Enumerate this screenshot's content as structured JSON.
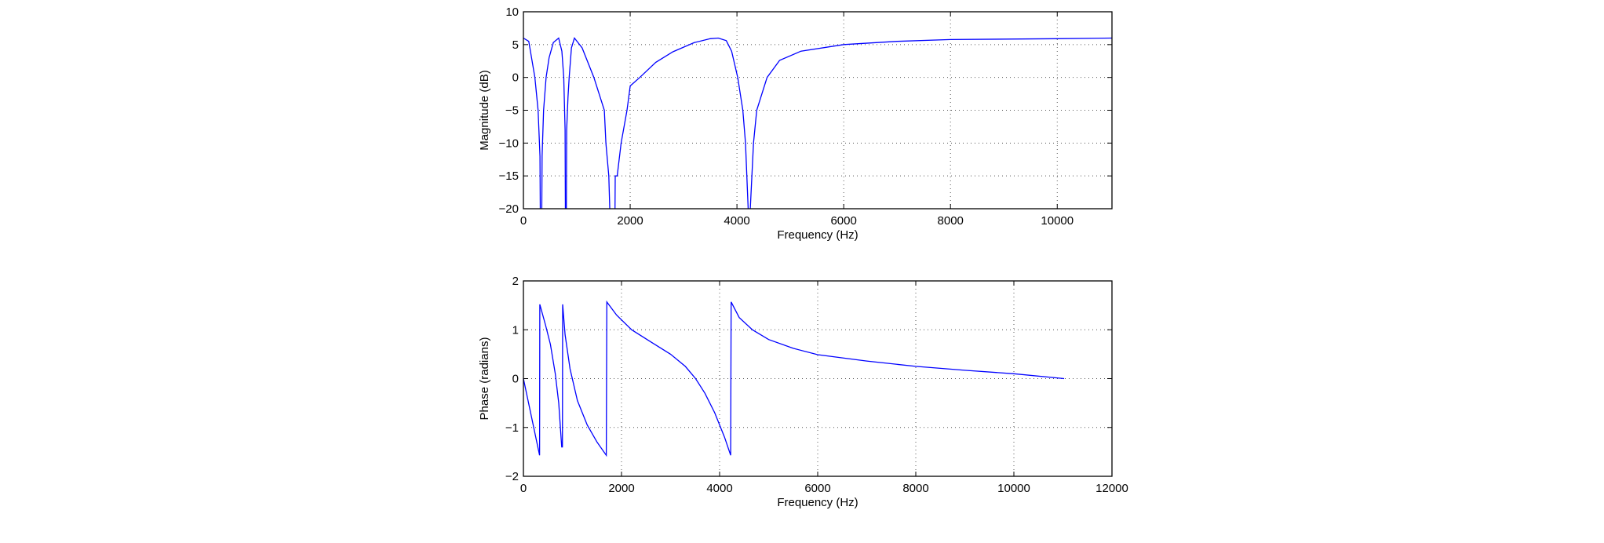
{
  "chart_data": [
    {
      "type": "line",
      "title": "",
      "xlabel": "Frequency (Hz)",
      "ylabel": "Magnitude (dB)",
      "xlim": [
        0,
        11025
      ],
      "ylim": [
        -20,
        10
      ],
      "xticks": [
        0,
        2000,
        4000,
        6000,
        8000,
        10000
      ],
      "yticks": [
        -20,
        -15,
        -10,
        -5,
        0,
        5,
        10
      ],
      "grid": true,
      "line_color": "#0000ff",
      "series": [
        {
          "name": "magnitude",
          "x": [
            0,
            100,
            215,
            275,
            310,
            330,
            350,
            378,
            425,
            480,
            560,
            660,
            720,
            756,
            780,
            795,
            810,
            835,
            857,
            900,
            955,
            1100,
            1320,
            1515,
            1545,
            1600,
            1690,
            1700,
            1720,
            1757,
            1830,
            1940,
            2000,
            2180,
            2480,
            2800,
            3200,
            3500,
            3650,
            3800,
            3900,
            4015,
            4110,
            4160,
            4210,
            4230,
            4250,
            4310,
            4370,
            4565,
            4800,
            5200,
            6000,
            7000,
            8000,
            10000,
            11025
          ],
          "y": [
            6,
            5.5,
            0,
            -5,
            -12,
            -40,
            -12,
            -5,
            0,
            3,
            5.3,
            6,
            4,
            0,
            -8,
            -40,
            -8,
            -3,
            0,
            4.5,
            6,
            4.5,
            0,
            -5,
            -10,
            -15,
            -40,
            -40,
            -15,
            -15,
            -10,
            -5,
            -1.3,
            0,
            2.3,
            3.9,
            5.3,
            5.9,
            6,
            5.6,
            4,
            0,
            -5,
            -10,
            -20,
            -40,
            -20,
            -10,
            -5,
            0,
            2.6,
            4,
            5,
            5.5,
            5.77,
            5.9,
            6
          ]
        }
      ]
    },
    {
      "type": "line",
      "title": "",
      "xlabel": "Frequency (Hz)",
      "ylabel": "Phase (radians)",
      "xlim": [
        0,
        12000
      ],
      "ylim": [
        -2,
        2
      ],
      "xticks": [
        0,
        2000,
        4000,
        6000,
        8000,
        10000,
        12000
      ],
      "yticks": [
        -2,
        -1,
        0,
        1,
        2
      ],
      "grid": true,
      "line_color": "#0000ff",
      "series": [
        {
          "name": "phase",
          "x": [
            0,
            330,
            335,
            450,
            550,
            650,
            720,
            780,
            795,
            800,
            850,
            950,
            1100,
            1300,
            1500,
            1690,
            1700,
            1900,
            2208,
            2600,
            3000,
            3300,
            3510,
            3700,
            3900,
            4100,
            4225,
            4235,
            4400,
            4670,
            5000,
            5500,
            6000,
            7000,
            8000,
            9000,
            10000,
            11025
          ],
          "y": [
            0,
            -1.57,
            1.52,
            1.1,
            0.7,
            0.1,
            -0.5,
            -1.4,
            -1.4,
            1.52,
            0.9,
            0.2,
            -0.45,
            -0.95,
            -1.3,
            -1.57,
            1.57,
            1.3,
            1.0,
            0.75,
            0.5,
            0.25,
            0,
            -0.3,
            -0.7,
            -1.2,
            -1.57,
            1.57,
            1.25,
            1.0,
            0.8,
            0.62,
            0.49,
            0.36,
            0.25,
            0.17,
            0.1,
            0
          ]
        }
      ]
    }
  ]
}
